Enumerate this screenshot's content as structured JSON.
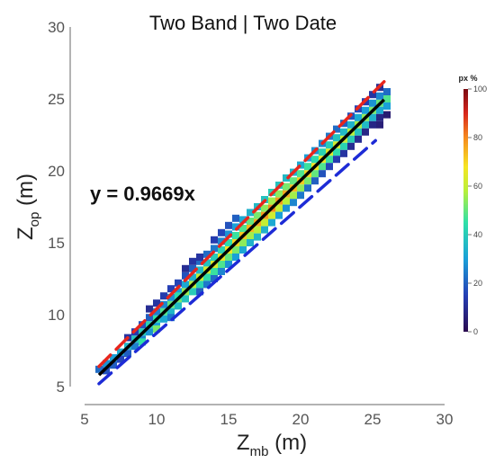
{
  "chart_data": {
    "type": "heatmap",
    "title": "Two Band | Two Date",
    "xlabel": {
      "main": "Z",
      "sub": "mb",
      "unit": " (m)"
    },
    "ylabel": {
      "main": "Z",
      "sub": "op",
      "unit": " (m)"
    },
    "xlim": [
      5,
      30
    ],
    "ylim": [
      5,
      30
    ],
    "xticks": [
      5,
      10,
      15,
      20,
      25,
      30
    ],
    "yticks": [
      5,
      10,
      15,
      20,
      25,
      30
    ],
    "bin_size": 0.5,
    "equation": "y = 0.9669x",
    "regression": {
      "slope": 0.9669,
      "x_range": [
        6,
        25.8
      ],
      "color": "#000000"
    },
    "upper_bound": {
      "x": [
        6,
        25.8
      ],
      "y": [
        6.4,
        26.2
      ],
      "color": "#e8251c",
      "style": "dashed"
    },
    "lower_bound": {
      "x": [
        6,
        25.2
      ],
      "y": [
        5.2,
        22.1
      ],
      "color": "#1d2bd6",
      "style": "dashed"
    },
    "colorbar": {
      "title": "px %",
      "min": 0,
      "max": 100,
      "ticks": [
        0,
        20,
        40,
        60,
        80,
        100
      ]
    },
    "grid": false,
    "density_cells": [
      [
        6.0,
        6.2,
        22
      ],
      [
        6.5,
        6.6,
        28
      ],
      [
        6.5,
        6.1,
        18
      ],
      [
        7.0,
        7.0,
        30
      ],
      [
        7.0,
        6.5,
        20
      ],
      [
        7.5,
        7.4,
        32
      ],
      [
        7.5,
        6.9,
        16
      ],
      [
        8.0,
        7.8,
        35
      ],
      [
        8.0,
        7.3,
        20
      ],
      [
        8.0,
        8.4,
        12
      ],
      [
        8.5,
        8.3,
        38
      ],
      [
        8.5,
        7.8,
        25
      ],
      [
        8.5,
        8.8,
        14
      ],
      [
        9.0,
        8.8,
        40
      ],
      [
        9.0,
        8.3,
        26
      ],
      [
        9.0,
        9.3,
        18
      ],
      [
        9.0,
        8.1,
        45
      ],
      [
        9.5,
        9.3,
        42
      ],
      [
        9.5,
        8.8,
        28
      ],
      [
        9.5,
        9.8,
        20
      ],
      [
        9.5,
        10.4,
        10
      ],
      [
        10.0,
        9.7,
        45
      ],
      [
        10.0,
        9.2,
        30
      ],
      [
        10.0,
        10.2,
        25
      ],
      [
        10.0,
        10.8,
        12
      ],
      [
        10.0,
        9.0,
        52
      ],
      [
        10.5,
        10.2,
        48
      ],
      [
        10.5,
        9.7,
        32
      ],
      [
        10.5,
        10.7,
        26
      ],
      [
        10.5,
        11.3,
        14
      ],
      [
        11.0,
        10.7,
        50
      ],
      [
        11.0,
        10.2,
        35
      ],
      [
        11.0,
        11.2,
        28
      ],
      [
        11.0,
        11.8,
        15
      ],
      [
        11.0,
        9.8,
        24
      ],
      [
        11.5,
        11.1,
        52
      ],
      [
        11.5,
        10.6,
        36
      ],
      [
        11.5,
        11.6,
        30
      ],
      [
        11.5,
        12.2,
        16
      ],
      [
        11.5,
        11.3,
        44
      ],
      [
        12.0,
        11.6,
        55
      ],
      [
        12.0,
        11.1,
        38
      ],
      [
        12.0,
        12.1,
        32
      ],
      [
        12.0,
        12.7,
        18
      ],
      [
        12.0,
        13.2,
        10
      ],
      [
        12.5,
        12.1,
        58
      ],
      [
        12.5,
        11.6,
        40
      ],
      [
        12.5,
        12.6,
        34
      ],
      [
        12.5,
        13.2,
        20
      ],
      [
        12.5,
        13.7,
        12
      ],
      [
        13.0,
        12.6,
        60
      ],
      [
        13.0,
        12.1,
        42
      ],
      [
        13.0,
        13.1,
        36
      ],
      [
        13.0,
        13.7,
        22
      ],
      [
        13.0,
        14.0,
        12
      ],
      [
        13.0,
        11.6,
        20
      ],
      [
        13.5,
        13.1,
        62
      ],
      [
        13.5,
        12.6,
        44
      ],
      [
        13.5,
        13.6,
        38
      ],
      [
        13.5,
        14.2,
        22
      ],
      [
        13.5,
        12.1,
        24
      ],
      [
        14.0,
        13.5,
        64
      ],
      [
        14.0,
        13.0,
        46
      ],
      [
        14.0,
        14.0,
        40
      ],
      [
        14.0,
        14.6,
        24
      ],
      [
        14.0,
        15.2,
        14
      ],
      [
        14.0,
        12.5,
        22
      ],
      [
        14.5,
        14.0,
        66
      ],
      [
        14.5,
        13.5,
        48
      ],
      [
        14.5,
        14.5,
        42
      ],
      [
        14.5,
        15.1,
        26
      ],
      [
        14.5,
        15.7,
        16
      ],
      [
        14.5,
        13.0,
        26
      ],
      [
        15.0,
        14.5,
        68
      ],
      [
        15.0,
        14.0,
        50
      ],
      [
        15.0,
        15.0,
        44
      ],
      [
        15.0,
        15.6,
        28
      ],
      [
        15.0,
        16.2,
        18
      ],
      [
        15.0,
        13.5,
        28
      ],
      [
        15.5,
        15.0,
        70
      ],
      [
        15.5,
        14.5,
        52
      ],
      [
        15.5,
        15.5,
        46
      ],
      [
        15.5,
        16.1,
        30
      ],
      [
        15.5,
        16.7,
        20
      ],
      [
        15.5,
        14.0,
        30
      ],
      [
        16.0,
        15.5,
        72
      ],
      [
        16.0,
        15.0,
        54
      ],
      [
        16.0,
        16.0,
        48
      ],
      [
        16.0,
        16.6,
        32
      ],
      [
        16.0,
        14.5,
        32
      ],
      [
        16.5,
        16.0,
        74
      ],
      [
        16.5,
        15.5,
        56
      ],
      [
        16.5,
        16.5,
        50
      ],
      [
        16.5,
        17.1,
        34
      ],
      [
        16.5,
        15.0,
        34
      ],
      [
        17.0,
        16.4,
        76
      ],
      [
        17.0,
        15.9,
        58
      ],
      [
        17.0,
        16.9,
        52
      ],
      [
        17.0,
        17.5,
        36
      ],
      [
        17.0,
        15.4,
        36
      ],
      [
        17.5,
        16.9,
        78
      ],
      [
        17.5,
        16.4,
        60
      ],
      [
        17.5,
        17.4,
        54
      ],
      [
        17.5,
        18.0,
        38
      ],
      [
        17.5,
        15.9,
        34
      ],
      [
        18.0,
        17.4,
        80
      ],
      [
        18.0,
        16.9,
        62
      ],
      [
        18.0,
        17.9,
        56
      ],
      [
        18.0,
        18.5,
        40
      ],
      [
        18.0,
        16.4,
        32
      ],
      [
        18.5,
        17.9,
        78
      ],
      [
        18.5,
        17.4,
        60
      ],
      [
        18.5,
        18.4,
        54
      ],
      [
        18.5,
        19.0,
        38
      ],
      [
        18.5,
        16.9,
        30
      ],
      [
        19.0,
        18.4,
        76
      ],
      [
        19.0,
        17.9,
        58
      ],
      [
        19.0,
        18.9,
        52
      ],
      [
        19.0,
        19.5,
        36
      ],
      [
        19.0,
        17.4,
        28
      ],
      [
        19.5,
        18.8,
        74
      ],
      [
        19.5,
        18.3,
        56
      ],
      [
        19.5,
        19.3,
        50
      ],
      [
        19.5,
        19.9,
        34
      ],
      [
        19.5,
        17.8,
        26
      ],
      [
        20.0,
        19.3,
        72
      ],
      [
        20.0,
        18.8,
        54
      ],
      [
        20.0,
        19.8,
        48
      ],
      [
        20.0,
        20.4,
        32
      ],
      [
        20.0,
        18.3,
        24
      ],
      [
        20.5,
        19.8,
        70
      ],
      [
        20.5,
        19.3,
        52
      ],
      [
        20.5,
        20.3,
        46
      ],
      [
        20.5,
        20.9,
        30
      ],
      [
        20.5,
        18.8,
        22
      ],
      [
        21.0,
        20.3,
        68
      ],
      [
        21.0,
        19.8,
        50
      ],
      [
        21.0,
        20.8,
        44
      ],
      [
        21.0,
        21.4,
        28
      ],
      [
        21.0,
        19.3,
        20
      ],
      [
        21.5,
        20.8,
        66
      ],
      [
        21.5,
        20.3,
        48
      ],
      [
        21.5,
        21.3,
        42
      ],
      [
        21.5,
        21.9,
        26
      ],
      [
        21.5,
        19.8,
        18
      ],
      [
        22.0,
        21.3,
        64
      ],
      [
        22.0,
        20.8,
        46
      ],
      [
        22.0,
        21.8,
        40
      ],
      [
        22.0,
        22.4,
        24
      ],
      [
        22.0,
        20.3,
        16
      ],
      [
        22.5,
        21.8,
        62
      ],
      [
        22.5,
        21.3,
        44
      ],
      [
        22.5,
        22.3,
        38
      ],
      [
        22.5,
        22.9,
        22
      ],
      [
        22.5,
        20.8,
        14
      ],
      [
        23.0,
        22.2,
        60
      ],
      [
        23.0,
        21.7,
        42
      ],
      [
        23.0,
        22.7,
        36
      ],
      [
        23.0,
        23.3,
        20
      ],
      [
        23.0,
        21.2,
        12
      ],
      [
        23.5,
        22.7,
        58
      ],
      [
        23.5,
        22.2,
        40
      ],
      [
        23.5,
        23.2,
        34
      ],
      [
        23.5,
        23.8,
        18
      ],
      [
        23.5,
        21.7,
        10
      ],
      [
        24.0,
        23.2,
        56
      ],
      [
        24.0,
        22.7,
        38
      ],
      [
        24.0,
        23.7,
        32
      ],
      [
        24.0,
        24.3,
        16
      ],
      [
        24.0,
        22.2,
        10
      ],
      [
        24.5,
        23.7,
        54
      ],
      [
        24.5,
        23.2,
        36
      ],
      [
        24.5,
        24.2,
        30
      ],
      [
        24.5,
        24.8,
        14
      ],
      [
        24.5,
        22.7,
        8
      ],
      [
        25.0,
        24.2,
        52
      ],
      [
        25.0,
        23.7,
        34
      ],
      [
        25.0,
        24.7,
        28
      ],
      [
        25.0,
        25.3,
        12
      ],
      [
        25.0,
        23.2,
        8
      ],
      [
        25.5,
        24.7,
        50
      ],
      [
        25.5,
        24.2,
        32
      ],
      [
        25.5,
        25.2,
        26
      ],
      [
        25.5,
        25.8,
        10
      ],
      [
        25.5,
        23.7,
        8
      ],
      [
        25.5,
        23.2,
        6
      ],
      [
        26.0,
        25.0,
        48
      ],
      [
        26.0,
        24.5,
        30
      ],
      [
        26.0,
        25.5,
        22
      ],
      [
        26.0,
        23.9,
        5
      ]
    ]
  }
}
